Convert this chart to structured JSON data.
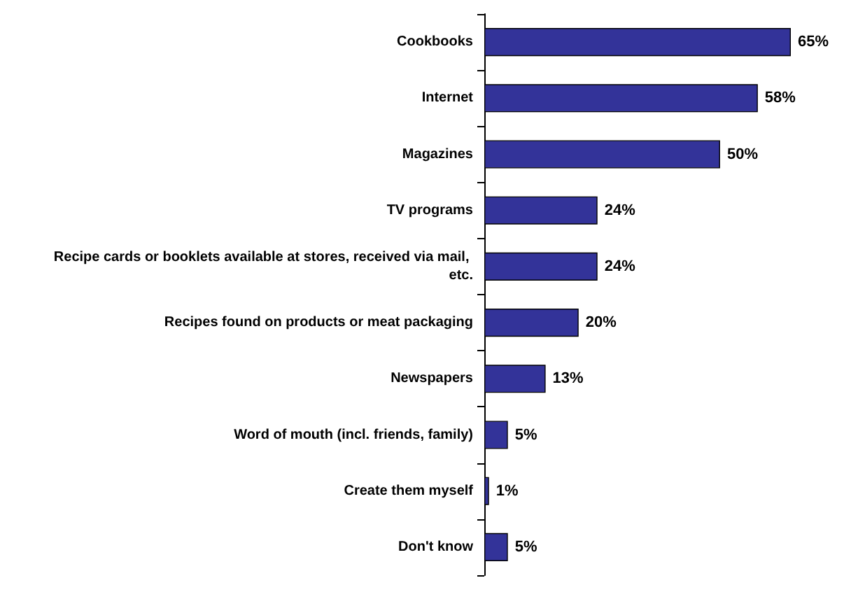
{
  "chart_data": {
    "type": "bar",
    "orientation": "horizontal",
    "categories": [
      "Cookbooks",
      "Internet",
      "Magazines",
      "TV programs",
      "Recipe cards or booklets available at stores, received via mail, etc.",
      "Recipes found on products or meat packaging",
      "Newspapers",
      "Word of mouth (incl. friends, family)",
      "Create them myself",
      "Don't know"
    ],
    "values": [
      65,
      58,
      50,
      24,
      24,
      20,
      13,
      5,
      1,
      5
    ],
    "value_labels": [
      "65%",
      "58%",
      "50%",
      "24%",
      "24%",
      "20%",
      "13%",
      "5%",
      "1%",
      "5%"
    ],
    "color": "#333399"
  }
}
